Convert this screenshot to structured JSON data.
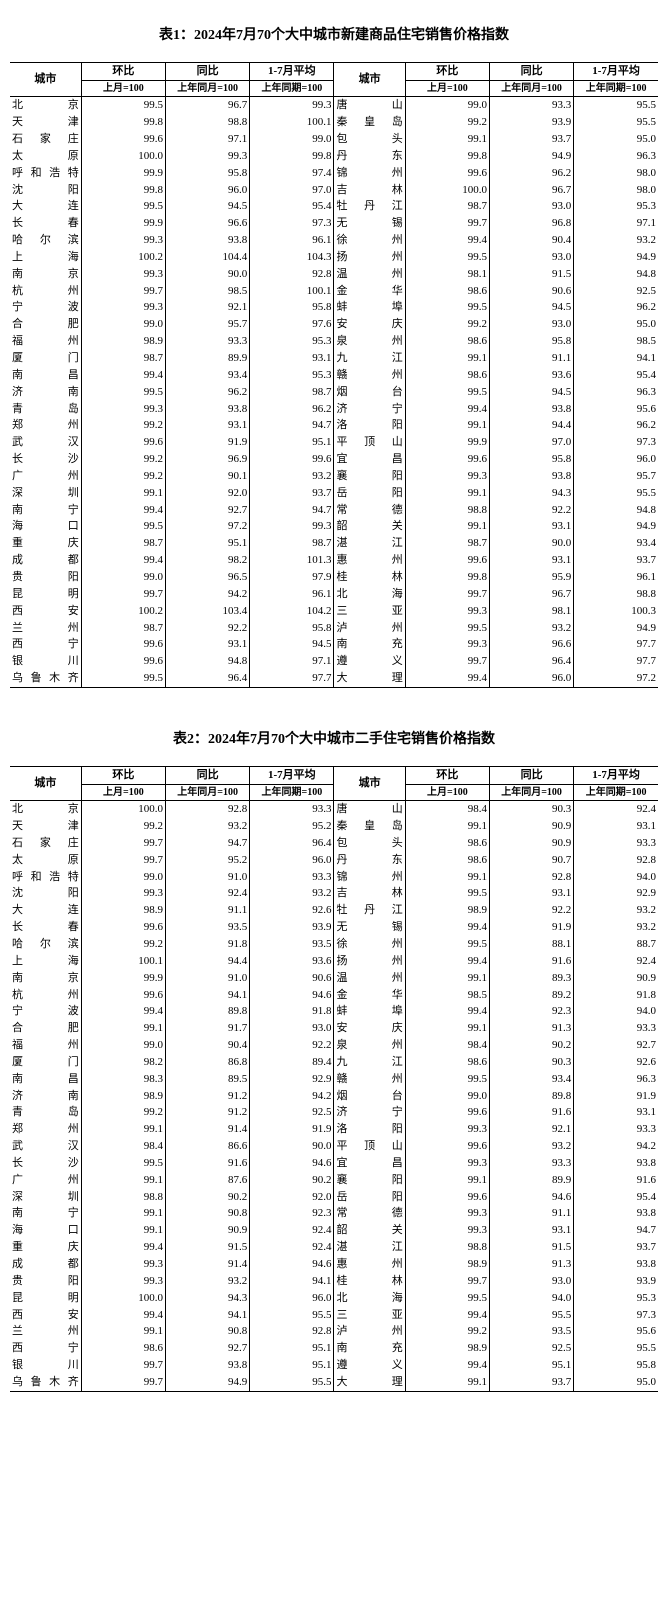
{
  "table1": {
    "title": "表1：2024年7月70个大中城市新建商品住宅销售价格指数",
    "headers": {
      "city": "城市",
      "mom": "环比",
      "yoy": "同比",
      "avg": "1-7月平均",
      "mom_sub": "上月=100",
      "yoy_sub": "上年同月=100",
      "avg_sub": "上年同期=100"
    },
    "left": [
      {
        "city": "北京",
        "mom": "99.5",
        "yoy": "96.7",
        "avg": "99.3"
      },
      {
        "city": "天津",
        "mom": "99.8",
        "yoy": "98.8",
        "avg": "100.1"
      },
      {
        "city": "石家庄",
        "mom": "99.6",
        "yoy": "97.1",
        "avg": "99.0"
      },
      {
        "city": "太原",
        "mom": "100.0",
        "yoy": "99.3",
        "avg": "99.8"
      },
      {
        "city": "呼和浩特",
        "mom": "99.9",
        "yoy": "95.8",
        "avg": "97.4"
      },
      {
        "city": "沈阳",
        "mom": "99.8",
        "yoy": "96.0",
        "avg": "97.0"
      },
      {
        "city": "大连",
        "mom": "99.5",
        "yoy": "94.5",
        "avg": "95.4"
      },
      {
        "city": "长春",
        "mom": "99.9",
        "yoy": "96.6",
        "avg": "97.3"
      },
      {
        "city": "哈尔滨",
        "mom": "99.3",
        "yoy": "93.8",
        "avg": "96.1"
      },
      {
        "city": "上海",
        "mom": "100.2",
        "yoy": "104.4",
        "avg": "104.3"
      },
      {
        "city": "南京",
        "mom": "99.3",
        "yoy": "90.0",
        "avg": "92.8"
      },
      {
        "city": "杭州",
        "mom": "99.7",
        "yoy": "98.5",
        "avg": "100.1"
      },
      {
        "city": "宁波",
        "mom": "99.3",
        "yoy": "92.1",
        "avg": "95.8"
      },
      {
        "city": "合肥",
        "mom": "99.0",
        "yoy": "95.7",
        "avg": "97.6"
      },
      {
        "city": "福州",
        "mom": "98.9",
        "yoy": "93.3",
        "avg": "95.3"
      },
      {
        "city": "厦门",
        "mom": "98.7",
        "yoy": "89.9",
        "avg": "93.1"
      },
      {
        "city": "南昌",
        "mom": "99.4",
        "yoy": "93.4",
        "avg": "95.3"
      },
      {
        "city": "济南",
        "mom": "99.5",
        "yoy": "96.2",
        "avg": "98.7"
      },
      {
        "city": "青岛",
        "mom": "99.3",
        "yoy": "93.8",
        "avg": "96.2"
      },
      {
        "city": "郑州",
        "mom": "99.2",
        "yoy": "93.1",
        "avg": "94.7"
      },
      {
        "city": "武汉",
        "mom": "99.6",
        "yoy": "91.9",
        "avg": "95.1"
      },
      {
        "city": "长沙",
        "mom": "99.2",
        "yoy": "96.9",
        "avg": "99.6"
      },
      {
        "city": "广州",
        "mom": "99.2",
        "yoy": "90.1",
        "avg": "93.2"
      },
      {
        "city": "深圳",
        "mom": "99.1",
        "yoy": "92.0",
        "avg": "93.7"
      },
      {
        "city": "南宁",
        "mom": "99.4",
        "yoy": "92.7",
        "avg": "94.7"
      },
      {
        "city": "海口",
        "mom": "99.5",
        "yoy": "97.2",
        "avg": "99.3"
      },
      {
        "city": "重庆",
        "mom": "98.7",
        "yoy": "95.1",
        "avg": "98.7"
      },
      {
        "city": "成都",
        "mom": "99.4",
        "yoy": "98.2",
        "avg": "101.3"
      },
      {
        "city": "贵阳",
        "mom": "99.0",
        "yoy": "96.5",
        "avg": "97.9"
      },
      {
        "city": "昆明",
        "mom": "99.7",
        "yoy": "94.2",
        "avg": "96.1"
      },
      {
        "city": "西安",
        "mom": "100.2",
        "yoy": "103.4",
        "avg": "104.2"
      },
      {
        "city": "兰州",
        "mom": "98.7",
        "yoy": "92.2",
        "avg": "95.8"
      },
      {
        "city": "西宁",
        "mom": "99.6",
        "yoy": "93.1",
        "avg": "94.5"
      },
      {
        "city": "银川",
        "mom": "99.6",
        "yoy": "94.8",
        "avg": "97.1"
      },
      {
        "city": "乌鲁木齐",
        "mom": "99.5",
        "yoy": "96.4",
        "avg": "97.7"
      }
    ],
    "right": [
      {
        "city": "唐山",
        "mom": "99.0",
        "yoy": "93.3",
        "avg": "95.5"
      },
      {
        "city": "秦皇岛",
        "mom": "99.2",
        "yoy": "93.9",
        "avg": "95.5"
      },
      {
        "city": "包头",
        "mom": "99.1",
        "yoy": "93.7",
        "avg": "95.0"
      },
      {
        "city": "丹东",
        "mom": "99.8",
        "yoy": "94.9",
        "avg": "96.3"
      },
      {
        "city": "锦州",
        "mom": "99.6",
        "yoy": "96.2",
        "avg": "98.0"
      },
      {
        "city": "吉林",
        "mom": "100.0",
        "yoy": "96.7",
        "avg": "98.0"
      },
      {
        "city": "牡丹江",
        "mom": "98.7",
        "yoy": "93.0",
        "avg": "95.3"
      },
      {
        "city": "无锡",
        "mom": "99.7",
        "yoy": "96.8",
        "avg": "97.1"
      },
      {
        "city": "徐州",
        "mom": "99.4",
        "yoy": "90.4",
        "avg": "93.2"
      },
      {
        "city": "扬州",
        "mom": "99.5",
        "yoy": "93.0",
        "avg": "94.9"
      },
      {
        "city": "温州",
        "mom": "98.1",
        "yoy": "91.5",
        "avg": "94.8"
      },
      {
        "city": "金华",
        "mom": "98.6",
        "yoy": "90.6",
        "avg": "92.5"
      },
      {
        "city": "蚌埠",
        "mom": "99.5",
        "yoy": "94.5",
        "avg": "96.2"
      },
      {
        "city": "安庆",
        "mom": "99.2",
        "yoy": "93.0",
        "avg": "95.0"
      },
      {
        "city": "泉州",
        "mom": "98.6",
        "yoy": "95.8",
        "avg": "98.5"
      },
      {
        "city": "九江",
        "mom": "99.1",
        "yoy": "91.1",
        "avg": "94.1"
      },
      {
        "city": "赣州",
        "mom": "98.6",
        "yoy": "93.6",
        "avg": "95.4"
      },
      {
        "city": "烟台",
        "mom": "99.5",
        "yoy": "94.5",
        "avg": "96.3"
      },
      {
        "city": "济宁",
        "mom": "99.4",
        "yoy": "93.8",
        "avg": "95.6"
      },
      {
        "city": "洛阳",
        "mom": "99.1",
        "yoy": "94.4",
        "avg": "96.2"
      },
      {
        "city": "平顶山",
        "mom": "99.9",
        "yoy": "97.0",
        "avg": "97.3"
      },
      {
        "city": "宜昌",
        "mom": "99.6",
        "yoy": "95.8",
        "avg": "96.0"
      },
      {
        "city": "襄阳",
        "mom": "99.3",
        "yoy": "93.8",
        "avg": "95.7"
      },
      {
        "city": "岳阳",
        "mom": "99.1",
        "yoy": "94.3",
        "avg": "95.5"
      },
      {
        "city": "常德",
        "mom": "98.8",
        "yoy": "92.2",
        "avg": "94.8"
      },
      {
        "city": "韶关",
        "mom": "99.1",
        "yoy": "93.1",
        "avg": "94.9"
      },
      {
        "city": "湛江",
        "mom": "98.7",
        "yoy": "90.0",
        "avg": "93.4"
      },
      {
        "city": "惠州",
        "mom": "99.6",
        "yoy": "93.1",
        "avg": "93.7"
      },
      {
        "city": "桂林",
        "mom": "99.8",
        "yoy": "95.9",
        "avg": "96.1"
      },
      {
        "city": "北海",
        "mom": "99.7",
        "yoy": "96.7",
        "avg": "98.8"
      },
      {
        "city": "三亚",
        "mom": "99.3",
        "yoy": "98.1",
        "avg": "100.3"
      },
      {
        "city": "泸州",
        "mom": "99.5",
        "yoy": "93.2",
        "avg": "94.9"
      },
      {
        "city": "南充",
        "mom": "99.3",
        "yoy": "96.6",
        "avg": "97.7"
      },
      {
        "city": "遵义",
        "mom": "99.7",
        "yoy": "96.4",
        "avg": "97.7"
      },
      {
        "city": "大理",
        "mom": "99.4",
        "yoy": "96.0",
        "avg": "97.2"
      }
    ]
  },
  "table2": {
    "title": "表2：2024年7月70个大中城市二手住宅销售价格指数",
    "headers": {
      "city": "城市",
      "mom": "环比",
      "yoy": "同比",
      "avg": "1-7月平均",
      "mom_sub": "上月=100",
      "yoy_sub": "上年同月=100",
      "avg_sub": "上年同期=100"
    },
    "left": [
      {
        "city": "北京",
        "mom": "100.0",
        "yoy": "92.8",
        "avg": "93.3"
      },
      {
        "city": "天津",
        "mom": "99.2",
        "yoy": "93.2",
        "avg": "95.2"
      },
      {
        "city": "石家庄",
        "mom": "99.7",
        "yoy": "94.7",
        "avg": "96.4"
      },
      {
        "city": "太原",
        "mom": "99.7",
        "yoy": "95.2",
        "avg": "96.0"
      },
      {
        "city": "呼和浩特",
        "mom": "99.0",
        "yoy": "91.0",
        "avg": "93.3"
      },
      {
        "city": "沈阳",
        "mom": "99.3",
        "yoy": "92.4",
        "avg": "93.2"
      },
      {
        "city": "大连",
        "mom": "98.9",
        "yoy": "91.1",
        "avg": "92.6"
      },
      {
        "city": "长春",
        "mom": "99.6",
        "yoy": "93.5",
        "avg": "93.9"
      },
      {
        "city": "哈尔滨",
        "mom": "99.2",
        "yoy": "91.8",
        "avg": "93.5"
      },
      {
        "city": "上海",
        "mom": "100.1",
        "yoy": "94.4",
        "avg": "93.6"
      },
      {
        "city": "南京",
        "mom": "99.9",
        "yoy": "91.0",
        "avg": "90.6"
      },
      {
        "city": "杭州",
        "mom": "99.6",
        "yoy": "94.1",
        "avg": "94.6"
      },
      {
        "city": "宁波",
        "mom": "99.4",
        "yoy": "89.8",
        "avg": "91.8"
      },
      {
        "city": "合肥",
        "mom": "99.1",
        "yoy": "91.7",
        "avg": "93.0"
      },
      {
        "city": "福州",
        "mom": "99.0",
        "yoy": "90.4",
        "avg": "92.2"
      },
      {
        "city": "厦门",
        "mom": "98.2",
        "yoy": "86.8",
        "avg": "89.4"
      },
      {
        "city": "南昌",
        "mom": "98.3",
        "yoy": "89.5",
        "avg": "92.9"
      },
      {
        "city": "济南",
        "mom": "98.9",
        "yoy": "91.2",
        "avg": "94.2"
      },
      {
        "city": "青岛",
        "mom": "99.2",
        "yoy": "91.2",
        "avg": "92.5"
      },
      {
        "city": "郑州",
        "mom": "99.1",
        "yoy": "91.4",
        "avg": "91.9"
      },
      {
        "city": "武汉",
        "mom": "98.4",
        "yoy": "86.6",
        "avg": "90.0"
      },
      {
        "city": "长沙",
        "mom": "99.5",
        "yoy": "91.6",
        "avg": "94.6"
      },
      {
        "city": "广州",
        "mom": "99.1",
        "yoy": "87.6",
        "avg": "90.2"
      },
      {
        "city": "深圳",
        "mom": "98.8",
        "yoy": "90.2",
        "avg": "92.0"
      },
      {
        "city": "南宁",
        "mom": "99.1",
        "yoy": "90.8",
        "avg": "92.3"
      },
      {
        "city": "海口",
        "mom": "99.1",
        "yoy": "90.9",
        "avg": "92.4"
      },
      {
        "city": "重庆",
        "mom": "99.4",
        "yoy": "91.5",
        "avg": "92.4"
      },
      {
        "city": "成都",
        "mom": "99.3",
        "yoy": "91.4",
        "avg": "94.6"
      },
      {
        "city": "贵阳",
        "mom": "99.3",
        "yoy": "93.2",
        "avg": "94.1"
      },
      {
        "city": "昆明",
        "mom": "100.0",
        "yoy": "94.3",
        "avg": "96.0"
      },
      {
        "city": "西安",
        "mom": "99.4",
        "yoy": "94.1",
        "avg": "95.5"
      },
      {
        "city": "兰州",
        "mom": "99.1",
        "yoy": "90.8",
        "avg": "92.8"
      },
      {
        "city": "西宁",
        "mom": "98.6",
        "yoy": "92.7",
        "avg": "95.1"
      },
      {
        "city": "银川",
        "mom": "99.7",
        "yoy": "93.8",
        "avg": "95.1"
      },
      {
        "city": "乌鲁木齐",
        "mom": "99.7",
        "yoy": "94.9",
        "avg": "95.5"
      }
    ],
    "right": [
      {
        "city": "唐山",
        "mom": "98.4",
        "yoy": "90.3",
        "avg": "92.4"
      },
      {
        "city": "秦皇岛",
        "mom": "99.1",
        "yoy": "90.9",
        "avg": "93.1"
      },
      {
        "city": "包头",
        "mom": "98.6",
        "yoy": "90.9",
        "avg": "93.3"
      },
      {
        "city": "丹东",
        "mom": "98.6",
        "yoy": "90.7",
        "avg": "92.8"
      },
      {
        "city": "锦州",
        "mom": "99.1",
        "yoy": "92.8",
        "avg": "94.0"
      },
      {
        "city": "吉林",
        "mom": "99.5",
        "yoy": "93.1",
        "avg": "92.9"
      },
      {
        "city": "牡丹江",
        "mom": "98.9",
        "yoy": "92.2",
        "avg": "93.2"
      },
      {
        "city": "无锡",
        "mom": "99.4",
        "yoy": "91.9",
        "avg": "93.2"
      },
      {
        "city": "徐州",
        "mom": "99.5",
        "yoy": "88.1",
        "avg": "88.7"
      },
      {
        "city": "扬州",
        "mom": "99.4",
        "yoy": "91.6",
        "avg": "92.4"
      },
      {
        "city": "温州",
        "mom": "99.1",
        "yoy": "89.3",
        "avg": "90.9"
      },
      {
        "city": "金华",
        "mom": "98.5",
        "yoy": "89.2",
        "avg": "91.8"
      },
      {
        "city": "蚌埠",
        "mom": "99.4",
        "yoy": "92.3",
        "avg": "94.0"
      },
      {
        "city": "安庆",
        "mom": "99.1",
        "yoy": "91.3",
        "avg": "93.3"
      },
      {
        "city": "泉州",
        "mom": "98.4",
        "yoy": "90.2",
        "avg": "92.7"
      },
      {
        "city": "九江",
        "mom": "98.6",
        "yoy": "90.3",
        "avg": "92.6"
      },
      {
        "city": "赣州",
        "mom": "99.5",
        "yoy": "93.4",
        "avg": "96.3"
      },
      {
        "city": "烟台",
        "mom": "99.0",
        "yoy": "89.8",
        "avg": "91.9"
      },
      {
        "city": "济宁",
        "mom": "99.6",
        "yoy": "91.6",
        "avg": "93.1"
      },
      {
        "city": "洛阳",
        "mom": "99.3",
        "yoy": "92.1",
        "avg": "93.3"
      },
      {
        "city": "平顶山",
        "mom": "99.6",
        "yoy": "93.2",
        "avg": "94.2"
      },
      {
        "city": "宜昌",
        "mom": "99.3",
        "yoy": "93.3",
        "avg": "93.8"
      },
      {
        "city": "襄阳",
        "mom": "99.1",
        "yoy": "89.9",
        "avg": "91.6"
      },
      {
        "city": "岳阳",
        "mom": "99.6",
        "yoy": "94.6",
        "avg": "95.4"
      },
      {
        "city": "常德",
        "mom": "99.3",
        "yoy": "91.1",
        "avg": "93.8"
      },
      {
        "city": "韶关",
        "mom": "99.3",
        "yoy": "93.1",
        "avg": "94.7"
      },
      {
        "city": "湛江",
        "mom": "98.8",
        "yoy": "91.5",
        "avg": "93.7"
      },
      {
        "city": "惠州",
        "mom": "98.9",
        "yoy": "91.3",
        "avg": "93.8"
      },
      {
        "city": "桂林",
        "mom": "99.7",
        "yoy": "93.0",
        "avg": "93.9"
      },
      {
        "city": "北海",
        "mom": "99.5",
        "yoy": "94.0",
        "avg": "95.3"
      },
      {
        "city": "三亚",
        "mom": "99.4",
        "yoy": "95.5",
        "avg": "97.3"
      },
      {
        "city": "泸州",
        "mom": "99.2",
        "yoy": "93.5",
        "avg": "95.6"
      },
      {
        "city": "南充",
        "mom": "98.9",
        "yoy": "92.5",
        "avg": "95.5"
      },
      {
        "city": "遵义",
        "mom": "99.4",
        "yoy": "95.1",
        "avg": "95.8"
      },
      {
        "city": "大理",
        "mom": "99.1",
        "yoy": "93.7",
        "avg": "95.0"
      }
    ]
  }
}
